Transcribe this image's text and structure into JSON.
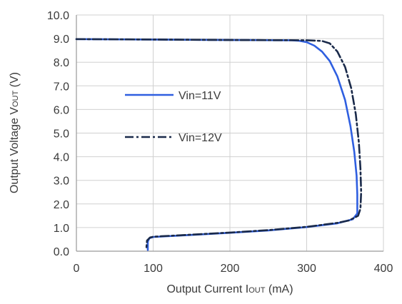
{
  "chart_data": {
    "type": "line",
    "title": "",
    "xlabel": "Output Current I",
    "xlabel_sub": "OUT",
    "xlabel_unit": " (mA)",
    "ylabel": "Output Voltage V",
    "ylabel_sub": "OUT",
    "ylabel_unit": " (V)",
    "xlim": [
      0,
      400
    ],
    "ylim": [
      0,
      10
    ],
    "xticks": [
      "0",
      "100",
      "200",
      "300",
      "400"
    ],
    "yticks": [
      "0.0",
      "1.0",
      "2.0",
      "3.0",
      "4.0",
      "5.0",
      "6.0",
      "7.0",
      "8.0",
      "9.0",
      "10.0"
    ],
    "grid": true,
    "legend_position": "center-left",
    "series": [
      {
        "name": "Vin=11V",
        "color": "#2f5fe0",
        "style": "solid",
        "points": [
          [
            0,
            8.98
          ],
          [
            100,
            8.96
          ],
          [
            200,
            8.94
          ],
          [
            280,
            8.93
          ],
          [
            290,
            8.91
          ],
          [
            300,
            8.85
          ],
          [
            310,
            8.7
          ],
          [
            320,
            8.45
          ],
          [
            330,
            8.05
          ],
          [
            340,
            7.4
          ],
          [
            350,
            6.4
          ],
          [
            357,
            5.3
          ],
          [
            362,
            4.2
          ],
          [
            365,
            3.2
          ],
          [
            366,
            2.4
          ],
          [
            366,
            1.6
          ],
          [
            360,
            1.35
          ],
          [
            340,
            1.18
          ],
          [
            300,
            1.02
          ],
          [
            250,
            0.88
          ],
          [
            200,
            0.78
          ],
          [
            150,
            0.69
          ],
          [
            110,
            0.62
          ],
          [
            100,
            0.6
          ],
          [
            95,
            0.55
          ],
          [
            93,
            0.4
          ],
          [
            93,
            0.05
          ]
        ]
      },
      {
        "name": "Vin=12V",
        "color": "#1a2a4a",
        "style": "dashdot",
        "points": [
          [
            0,
            8.98
          ],
          [
            100,
            8.96
          ],
          [
            200,
            8.94
          ],
          [
            300,
            8.93
          ],
          [
            320,
            8.9
          ],
          [
            330,
            8.8
          ],
          [
            340,
            8.45
          ],
          [
            350,
            7.8
          ],
          [
            358,
            6.9
          ],
          [
            364,
            5.8
          ],
          [
            368,
            4.6
          ],
          [
            370,
            3.5
          ],
          [
            371,
            2.5
          ],
          [
            370,
            1.8
          ],
          [
            367,
            1.5
          ],
          [
            355,
            1.3
          ],
          [
            340,
            1.2
          ],
          [
            300,
            1.03
          ],
          [
            250,
            0.89
          ],
          [
            200,
            0.79
          ],
          [
            150,
            0.7
          ],
          [
            110,
            0.63
          ],
          [
            100,
            0.61
          ],
          [
            96,
            0.58
          ],
          [
            92,
            0.45
          ],
          [
            91,
            0.05
          ]
        ]
      }
    ]
  }
}
